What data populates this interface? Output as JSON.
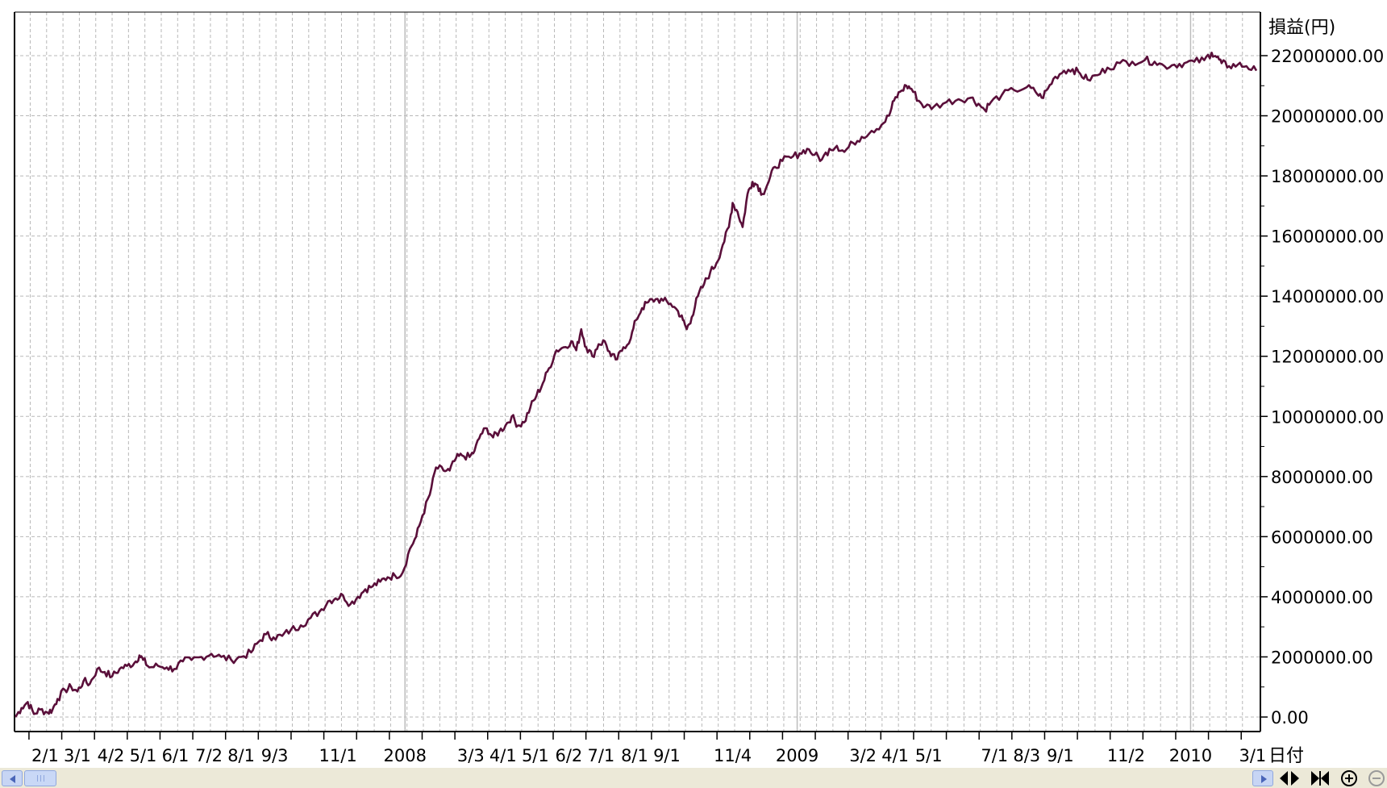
{
  "chart_data": {
    "type": "line",
    "title": "",
    "ylabel": "損益(円)",
    "xlabel": "日付",
    "ylim": [
      -1000000,
      23000000
    ],
    "xlim": [
      0,
      1000
    ],
    "y_ticks": [
      0,
      2000000,
      4000000,
      6000000,
      8000000,
      10000000,
      12000000,
      14000000,
      16000000,
      18000000,
      20000000,
      22000000
    ],
    "y_tick_labels": [
      "0.00",
      "2000000.00",
      "4000000.00",
      "6000000.00",
      "8000000.00",
      "10000000.00",
      "12000000.00",
      "14000000.00",
      "16000000.00",
      "18000000.00",
      "20000000.00",
      "22000000.00"
    ],
    "x_tick_labels": [
      {
        "label": "2/1",
        "x": 24
      },
      {
        "label": "3/1",
        "x": 50
      },
      {
        "label": "4/2",
        "x": 77
      },
      {
        "label": "5/1",
        "x": 103
      },
      {
        "label": "6/1",
        "x": 129
      },
      {
        "label": "7/2",
        "x": 156
      },
      {
        "label": "8/1",
        "x": 182
      },
      {
        "label": "9/3",
        "x": 209
      },
      {
        "label": "11/1",
        "x": 260
      },
      {
        "label": "2008",
        "x": 314
      },
      {
        "label": "3/3",
        "x": 367
      },
      {
        "label": "4/1",
        "x": 393
      },
      {
        "label": "5/1",
        "x": 419
      },
      {
        "label": "6/2",
        "x": 446
      },
      {
        "label": "7/1",
        "x": 472
      },
      {
        "label": "8/1",
        "x": 499
      },
      {
        "label": "9/1",
        "x": 525
      },
      {
        "label": "11/4",
        "x": 578
      },
      {
        "label": "2009",
        "x": 630
      },
      {
        "label": "3/2",
        "x": 683
      },
      {
        "label": "4/1",
        "x": 709
      },
      {
        "label": "5/1",
        "x": 736
      },
      {
        "label": "7/1",
        "x": 789
      },
      {
        "label": "8/3",
        "x": 815
      },
      {
        "label": "9/1",
        "x": 842
      },
      {
        "label": "11/2",
        "x": 895
      },
      {
        "label": "2010",
        "x": 947
      },
      {
        "label": "3/1",
        "x": 997
      }
    ],
    "major_gridlines_x": [
      314,
      630,
      947
    ],
    "grid": "dashed",
    "series": [
      {
        "name": "",
        "color": "#5a0f3a",
        "points": [
          [
            0,
            0
          ],
          [
            5,
            300000
          ],
          [
            10,
            500000
          ],
          [
            15,
            100000
          ],
          [
            20,
            250000
          ],
          [
            26,
            150000
          ],
          [
            30,
            250000
          ],
          [
            34,
            600000
          ],
          [
            40,
            900000
          ],
          [
            45,
            1000000
          ],
          [
            50,
            850000
          ],
          [
            55,
            1200000
          ],
          [
            60,
            1100000
          ],
          [
            66,
            1600000
          ],
          [
            72,
            1500000
          ],
          [
            78,
            1350000
          ],
          [
            84,
            1600000
          ],
          [
            90,
            1700000
          ],
          [
            96,
            1800000
          ],
          [
            100,
            2050000
          ],
          [
            103,
            1900000
          ],
          [
            108,
            1650000
          ],
          [
            115,
            1700000
          ],
          [
            122,
            1650000
          ],
          [
            128,
            1600000
          ],
          [
            135,
            1850000
          ],
          [
            142,
            1900000
          ],
          [
            150,
            2000000
          ],
          [
            158,
            2100000
          ],
          [
            166,
            2000000
          ],
          [
            174,
            1900000
          ],
          [
            182,
            2000000
          ],
          [
            190,
            2150000
          ],
          [
            196,
            2500000
          ],
          [
            202,
            2750000
          ],
          [
            208,
            2650000
          ],
          [
            215,
            2700000
          ],
          [
            222,
            2900000
          ],
          [
            230,
            3050000
          ],
          [
            238,
            3300000
          ],
          [
            245,
            3500000
          ],
          [
            252,
            3850000
          ],
          [
            258,
            3950000
          ],
          [
            264,
            4050000
          ],
          [
            270,
            3750000
          ],
          [
            276,
            4000000
          ],
          [
            282,
            4250000
          ],
          [
            288,
            4350000
          ],
          [
            294,
            4500000
          ],
          [
            300,
            4650000
          ],
          [
            306,
            4700000
          ],
          [
            312,
            4800000
          ],
          [
            318,
            5600000
          ],
          [
            323,
            6000000
          ],
          [
            328,
            6700000
          ],
          [
            334,
            7400000
          ],
          [
            339,
            8300000
          ],
          [
            345,
            8200000
          ],
          [
            350,
            8200000
          ],
          [
            355,
            8600000
          ],
          [
            360,
            8700000
          ],
          [
            366,
            8650000
          ],
          [
            370,
            8850000
          ],
          [
            375,
            9400000
          ],
          [
            380,
            9600000
          ],
          [
            385,
            9300000
          ],
          [
            390,
            9500000
          ],
          [
            395,
            9700000
          ],
          [
            400,
            10000000
          ],
          [
            405,
            9700000
          ],
          [
            410,
            9800000
          ],
          [
            415,
            10300000
          ],
          [
            420,
            10700000
          ],
          [
            425,
            11100000
          ],
          [
            430,
            11600000
          ],
          [
            436,
            12200000
          ],
          [
            442,
            12300000
          ],
          [
            448,
            12500000
          ],
          [
            452,
            12200000
          ],
          [
            456,
            12900000
          ],
          [
            460,
            12300000
          ],
          [
            465,
            12000000
          ],
          [
            470,
            12400000
          ],
          [
            475,
            12500000
          ],
          [
            480,
            12000000
          ],
          [
            485,
            11900000
          ],
          [
            490,
            12300000
          ],
          [
            496,
            12600000
          ],
          [
            500,
            13200000
          ],
          [
            505,
            13600000
          ],
          [
            510,
            13800000
          ],
          [
            516,
            13900000
          ],
          [
            522,
            13850000
          ],
          [
            528,
            13750000
          ],
          [
            534,
            13500000
          ],
          [
            538,
            13200000
          ],
          [
            541,
            12900000
          ],
          [
            545,
            13300000
          ],
          [
            550,
            14000000
          ],
          [
            555,
            14400000
          ],
          [
            560,
            14800000
          ],
          [
            565,
            15100000
          ],
          [
            570,
            15700000
          ],
          [
            575,
            16300000
          ],
          [
            578,
            17100000
          ],
          [
            582,
            16800000
          ],
          [
            586,
            16300000
          ],
          [
            590,
            17400000
          ],
          [
            594,
            17800000
          ],
          [
            598,
            17700000
          ],
          [
            602,
            17400000
          ],
          [
            607,
            17800000
          ],
          [
            612,
            18300000
          ],
          [
            618,
            18500000
          ],
          [
            625,
            18600000
          ],
          [
            632,
            18750000
          ],
          [
            638,
            18900000
          ],
          [
            644,
            18700000
          ],
          [
            650,
            18550000
          ],
          [
            656,
            18900000
          ],
          [
            662,
            19000000
          ],
          [
            668,
            18800000
          ],
          [
            675,
            19100000
          ],
          [
            682,
            19300000
          ],
          [
            690,
            19500000
          ],
          [
            698,
            19700000
          ],
          [
            704,
            20000000
          ],
          [
            708,
            20500000
          ],
          [
            713,
            20800000
          ],
          [
            718,
            21000000
          ],
          [
            722,
            20900000
          ],
          [
            728,
            20500000
          ],
          [
            733,
            20300000
          ],
          [
            740,
            20300000
          ],
          [
            750,
            20450000
          ],
          [
            760,
            20550000
          ],
          [
            770,
            20600000
          ],
          [
            776,
            20400000
          ],
          [
            781,
            20200000
          ],
          [
            786,
            20450000
          ],
          [
            795,
            20700000
          ],
          [
            805,
            20850000
          ],
          [
            815,
            20950000
          ],
          [
            822,
            20800000
          ],
          [
            827,
            20600000
          ],
          [
            832,
            20900000
          ],
          [
            838,
            21300000
          ],
          [
            845,
            21500000
          ],
          [
            852,
            21550000
          ],
          [
            858,
            21400000
          ],
          [
            864,
            21200000
          ],
          [
            872,
            21350000
          ],
          [
            880,
            21600000
          ],
          [
            890,
            21750000
          ],
          [
            900,
            21800000
          ],
          [
            910,
            21850000
          ],
          [
            918,
            21800000
          ],
          [
            926,
            21650000
          ],
          [
            934,
            21700000
          ],
          [
            942,
            21750000
          ],
          [
            950,
            21800000
          ],
          [
            958,
            21850000
          ],
          [
            964,
            22100000
          ],
          [
            968,
            21950000
          ],
          [
            972,
            21750000
          ],
          [
            978,
            21650000
          ],
          [
            985,
            21700000
          ],
          [
            992,
            21650000
          ],
          [
            1000,
            21500000
          ]
        ]
      }
    ]
  },
  "colors": {
    "line": "#5a0f3a",
    "grid": "#b8b8b8",
    "major_grid": "#bcbcbc",
    "frame": "#000000",
    "scrollbar_bg": "#ece9d8",
    "scroll_button": "#c7d5f4"
  },
  "toolbar": {
    "icons": [
      "scroll-left-icon",
      "scroll-right-icon",
      "expand-horizontal-icon",
      "compress-horizontal-icon",
      "zoom-in-icon",
      "zoom-out-icon"
    ]
  }
}
